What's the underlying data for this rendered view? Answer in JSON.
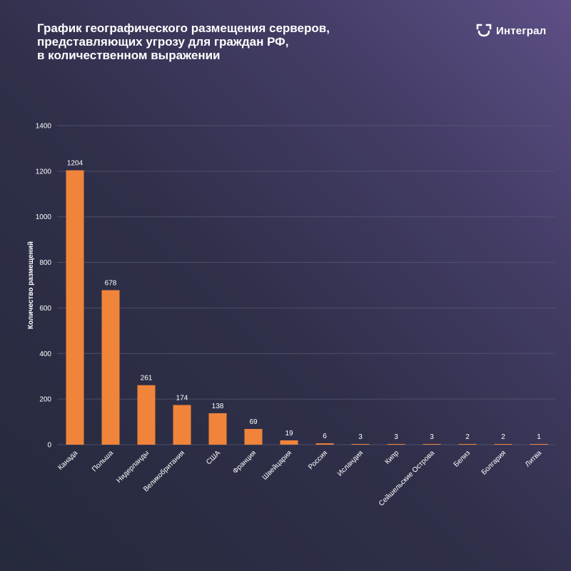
{
  "header": {
    "title_lines": [
      "График географического размещения серверов,",
      "представляющих угрозу для граждан РФ,",
      "в количественном выражении"
    ]
  },
  "brand": {
    "name": "Интеграл",
    "icon": "integral-logo-icon"
  },
  "colors": {
    "bar": "#f0843a",
    "text": "#ffffff",
    "grid": "#5b5d75"
  },
  "chart_data": {
    "type": "bar",
    "categories": [
      "Канада",
      "Польша",
      "Нидерланды",
      "Великобритания",
      "США",
      "Франция",
      "Швейцария",
      "Россия",
      "Исландия",
      "Кипр",
      "Сейшельские Острова",
      "Белиз",
      "Болгария",
      "Литва"
    ],
    "values": [
      1204,
      678,
      261,
      174,
      138,
      69,
      19,
      6,
      3,
      3,
      3,
      2,
      2,
      1
    ],
    "ylabel": "Количество размещений",
    "xlabel": "",
    "ylim": [
      0,
      1400
    ],
    "yticks": [
      0,
      200,
      400,
      600,
      800,
      1000,
      1200,
      1400
    ],
    "grid": true,
    "data_labels": true
  }
}
